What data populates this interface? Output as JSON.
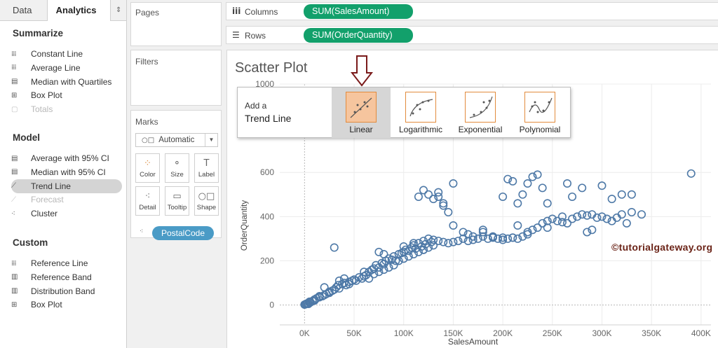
{
  "tabs": {
    "data": "Data",
    "analytics": "Analytics",
    "arrows": "⇕"
  },
  "analytics": {
    "summarize_title": "Summarize",
    "summarize": [
      {
        "label": "Constant Line",
        "icon": "constant-line-icon",
        "glyph": "⁞⁞⁞"
      },
      {
        "label": "Average Line",
        "icon": "average-line-icon",
        "glyph": "⁞⁞⁞"
      },
      {
        "label": "Median with Quartiles",
        "icon": "median-quartiles-icon",
        "glyph": "▤"
      },
      {
        "label": "Box Plot",
        "icon": "box-plot-icon",
        "glyph": "⊞"
      },
      {
        "label": "Totals",
        "icon": "totals-icon",
        "glyph": "▢",
        "disabled": true
      }
    ],
    "model_title": "Model",
    "model": [
      {
        "label": "Average with 95% CI",
        "icon": "average-ci-icon",
        "glyph": "▤"
      },
      {
        "label": "Median with 95% CI",
        "icon": "median-ci-icon",
        "glyph": "▤"
      },
      {
        "label": "Trend Line",
        "icon": "trend-line-icon",
        "glyph": "⟋",
        "selected": true
      },
      {
        "label": "Forecast",
        "icon": "forecast-icon",
        "glyph": "⟋",
        "disabled": true
      },
      {
        "label": "Cluster",
        "icon": "cluster-icon",
        "glyph": "⁖"
      }
    ],
    "custom_title": "Custom",
    "custom": [
      {
        "label": "Reference Line",
        "icon": "reference-line-icon",
        "glyph": "⁞⁞⁞"
      },
      {
        "label": "Reference Band",
        "icon": "reference-band-icon",
        "glyph": "▥"
      },
      {
        "label": "Distribution Band",
        "icon": "distribution-band-icon",
        "glyph": "▥"
      },
      {
        "label": "Box Plot",
        "icon": "box-plot-icon",
        "glyph": "⊞"
      }
    ]
  },
  "cards": {
    "pages": "Pages",
    "filters": "Filters",
    "marks": "Marks",
    "mark_type": "Automatic",
    "mark_buttons": [
      {
        "label": "Color",
        "icon": "color-icon",
        "glyph": "⁘"
      },
      {
        "label": "Size",
        "icon": "size-icon",
        "glyph": "⚬"
      },
      {
        "label": "Label",
        "icon": "label-icon",
        "glyph": "T"
      },
      {
        "label": "Detail",
        "icon": "detail-icon",
        "glyph": "⁖"
      },
      {
        "label": "Tooltip",
        "icon": "tooltip-icon",
        "glyph": "▭"
      },
      {
        "label": "Shape",
        "icon": "shape-icon",
        "glyph": "○□"
      }
    ],
    "detail_pill": "PostalCode"
  },
  "shelves": {
    "columns_label": "Columns",
    "columns_pill": "SUM(SalesAmount)",
    "rows_label": "Rows",
    "rows_pill": "SUM(OrderQuantity)"
  },
  "viz": {
    "title": "Scatter Plot",
    "watermark": "©tutorialgateway.org"
  },
  "trend_popup": {
    "add": "Add a",
    "trend": "Trend Line",
    "options": [
      {
        "label": "Linear",
        "selected": true
      },
      {
        "label": "Logarithmic"
      },
      {
        "label": "Exponential"
      },
      {
        "label": "Polynomial"
      }
    ]
  },
  "colors": {
    "mark": "#4e79a7",
    "green_pill": "#12a06b",
    "blue_pill": "#4a9bc6",
    "accent_orange": "#e28b3d"
  },
  "chart_data": {
    "type": "scatter",
    "xlabel": "SalesAmount",
    "ylabel": "OrderQuantity",
    "xlim": [
      -25000,
      410000
    ],
    "ylim": [
      -90,
      1000
    ],
    "x_ticks": [
      0,
      50000,
      100000,
      150000,
      200000,
      250000,
      300000,
      350000,
      400000
    ],
    "x_tick_labels": [
      "0K",
      "50K",
      "100K",
      "150K",
      "200K",
      "250K",
      "300K",
      "350K",
      "400K"
    ],
    "y_ticks": [
      0,
      200,
      400,
      600,
      1000
    ],
    "y_tick_labels": [
      "0",
      "200",
      "400",
      "600",
      "1000"
    ],
    "grid": true,
    "points": [
      [
        0,
        2
      ],
      [
        1000,
        4
      ],
      [
        2000,
        6
      ],
      [
        3000,
        8
      ],
      [
        4000,
        5
      ],
      [
        5000,
        10
      ],
      [
        6000,
        12
      ],
      [
        8000,
        18
      ],
      [
        10000,
        25
      ],
      [
        12000,
        30
      ],
      [
        15000,
        35
      ],
      [
        18000,
        40
      ],
      [
        20000,
        45
      ],
      [
        22000,
        50
      ],
      [
        25000,
        55
      ],
      [
        28000,
        65
      ],
      [
        30000,
        70
      ],
      [
        32000,
        80
      ],
      [
        34000,
        90
      ],
      [
        35000,
        75
      ],
      [
        38000,
        95
      ],
      [
        40000,
        100
      ],
      [
        42000,
        90
      ],
      [
        45000,
        105
      ],
      [
        48000,
        110
      ],
      [
        50000,
        115
      ],
      [
        52000,
        110
      ],
      [
        55000,
        125
      ],
      [
        58000,
        120
      ],
      [
        60000,
        130
      ],
      [
        62000,
        135
      ],
      [
        65000,
        150
      ],
      [
        68000,
        160
      ],
      [
        70000,
        165
      ],
      [
        72000,
        180
      ],
      [
        75000,
        170
      ],
      [
        78000,
        190
      ],
      [
        80000,
        185
      ],
      [
        82000,
        200
      ],
      [
        85000,
        210
      ],
      [
        88000,
        205
      ],
      [
        90000,
        220
      ],
      [
        92000,
        200
      ],
      [
        95000,
        230
      ],
      [
        98000,
        235
      ],
      [
        100000,
        240
      ],
      [
        102000,
        250
      ],
      [
        105000,
        245
      ],
      [
        108000,
        260
      ],
      [
        110000,
        270
      ],
      [
        112000,
        255
      ],
      [
        115000,
        280
      ],
      [
        118000,
        265
      ],
      [
        120000,
        290
      ],
      [
        122000,
        275
      ],
      [
        125000,
        300
      ],
      [
        128000,
        285
      ],
      [
        130000,
        295
      ],
      [
        135000,
        290
      ],
      [
        140000,
        285
      ],
      [
        145000,
        280
      ],
      [
        150000,
        285
      ],
      [
        155000,
        290
      ],
      [
        160000,
        300
      ],
      [
        165000,
        290
      ],
      [
        170000,
        295
      ],
      [
        175000,
        300
      ],
      [
        180000,
        310
      ],
      [
        185000,
        300
      ],
      [
        190000,
        305
      ],
      [
        195000,
        300
      ],
      [
        200000,
        305
      ],
      [
        205000,
        300
      ],
      [
        210000,
        305
      ],
      [
        215000,
        300
      ],
      [
        220000,
        310
      ],
      [
        225000,
        320
      ],
      [
        230000,
        340
      ],
      [
        235000,
        350
      ],
      [
        240000,
        370
      ],
      [
        245000,
        380
      ],
      [
        250000,
        390
      ],
      [
        255000,
        380
      ],
      [
        260000,
        375
      ],
      [
        265000,
        370
      ],
      [
        270000,
        390
      ],
      [
        275000,
        400
      ],
      [
        280000,
        410
      ],
      [
        285000,
        405
      ],
      [
        290000,
        410
      ],
      [
        295000,
        395
      ],
      [
        300000,
        400
      ],
      [
        305000,
        390
      ],
      [
        310000,
        380
      ],
      [
        315000,
        395
      ],
      [
        320000,
        410
      ],
      [
        330000,
        420
      ],
      [
        340000,
        410
      ],
      [
        115000,
        490
      ],
      [
        120000,
        520
      ],
      [
        125000,
        500
      ],
      [
        130000,
        480
      ],
      [
        135000,
        490
      ],
      [
        140000,
        450
      ],
      [
        145000,
        420
      ],
      [
        150000,
        550
      ],
      [
        135000,
        510
      ],
      [
        140000,
        460
      ],
      [
        200000,
        490
      ],
      [
        205000,
        570
      ],
      [
        210000,
        560
      ],
      [
        215000,
        460
      ],
      [
        220000,
        500
      ],
      [
        225000,
        550
      ],
      [
        230000,
        580
      ],
      [
        235000,
        590
      ],
      [
        240000,
        530
      ],
      [
        245000,
        460
      ],
      [
        265000,
        550
      ],
      [
        270000,
        490
      ],
      [
        280000,
        530
      ],
      [
        300000,
        540
      ],
      [
        310000,
        480
      ],
      [
        320000,
        500
      ],
      [
        330000,
        500
      ],
      [
        390000,
        595
      ],
      [
        30000,
        260
      ],
      [
        20000,
        80
      ],
      [
        25000,
        60
      ],
      [
        15000,
        40
      ],
      [
        10000,
        20
      ],
      [
        5000,
        15
      ],
      [
        40000,
        120
      ],
      [
        45000,
        95
      ],
      [
        35000,
        110
      ],
      [
        60000,
        150
      ],
      [
        65000,
        120
      ],
      [
        70000,
        140
      ],
      [
        75000,
        150
      ],
      [
        80000,
        160
      ],
      [
        85000,
        170
      ],
      [
        90000,
        180
      ],
      [
        95000,
        200
      ],
      [
        100000,
        210
      ],
      [
        105000,
        220
      ],
      [
        110000,
        230
      ],
      [
        115000,
        240
      ],
      [
        120000,
        250
      ],
      [
        125000,
        260
      ],
      [
        130000,
        270
      ],
      [
        75000,
        240
      ],
      [
        80000,
        230
      ],
      [
        100000,
        265
      ],
      [
        110000,
        280
      ],
      [
        120000,
        250
      ],
      [
        150000,
        360
      ],
      [
        160000,
        330
      ],
      [
        165000,
        320
      ],
      [
        170000,
        310
      ],
      [
        180000,
        330
      ],
      [
        190000,
        310
      ],
      [
        200000,
        295
      ],
      [
        210000,
        305
      ],
      [
        225000,
        330
      ],
      [
        245000,
        350
      ],
      [
        260000,
        400
      ],
      [
        290000,
        340
      ],
      [
        285000,
        330
      ],
      [
        325000,
        370
      ],
      [
        215000,
        360
      ],
      [
        180000,
        340
      ]
    ]
  }
}
